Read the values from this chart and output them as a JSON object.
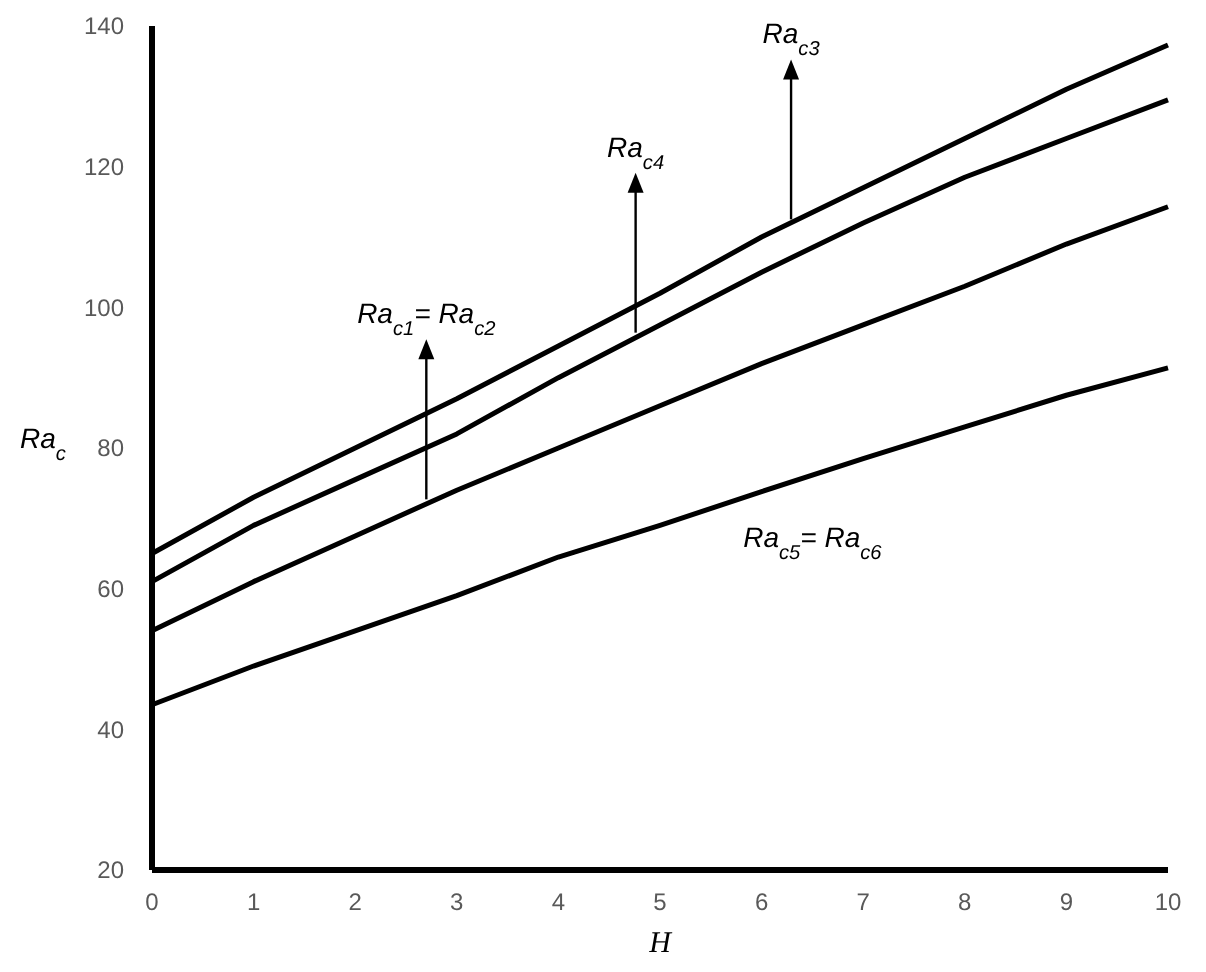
{
  "chart_data": {
    "type": "line",
    "xlabel": "H",
    "ylabel": "Ra$_{c}$",
    "x": [
      0,
      1,
      2,
      3,
      4,
      5,
      6,
      7,
      8,
      9,
      10
    ],
    "xlim": [
      0,
      10
    ],
    "xticks": [
      0,
      1,
      2,
      3,
      4,
      5,
      6,
      7,
      8,
      9,
      10
    ],
    "ylim": [
      20,
      140
    ],
    "yticks": [
      20,
      40,
      60,
      80,
      100,
      120,
      140
    ],
    "grid": false,
    "marker": "none",
    "line_style": "solid",
    "series": [
      {
        "color": "#000000",
        "values": [
          65,
          73,
          80,
          87,
          94.5,
          102,
          110,
          117,
          124,
          131,
          137.3
        ]
      },
      {
        "color": "#000000",
        "values": [
          61,
          69,
          75.5,
          82,
          90,
          97.5,
          105,
          112,
          118.5,
          124,
          129.5
        ]
      },
      {
        "color": "#000000",
        "values": [
          54,
          61,
          67.5,
          74,
          80,
          86,
          92,
          97.5,
          103,
          109,
          114.3
        ]
      },
      {
        "color": "#000000",
        "values": [
          43.5,
          49,
          54,
          59,
          64.5,
          69,
          73.8,
          78.5,
          83,
          87.5,
          91.4
        ]
      }
    ],
    "annotations": [
      {
        "text": "Ra$_{c1}$= Ra$_{c2}$",
        "x": 2.7,
        "y": 72.7
      },
      {
        "text": "Ra$_{c4}$",
        "x": 4.76,
        "y": 96.4
      },
      {
        "text": "Ra$_{c3}$",
        "x": 6.29,
        "y": 112.5
      },
      "Ra$_{c5}$= Ra$_{c6}$"
    ]
  }
}
